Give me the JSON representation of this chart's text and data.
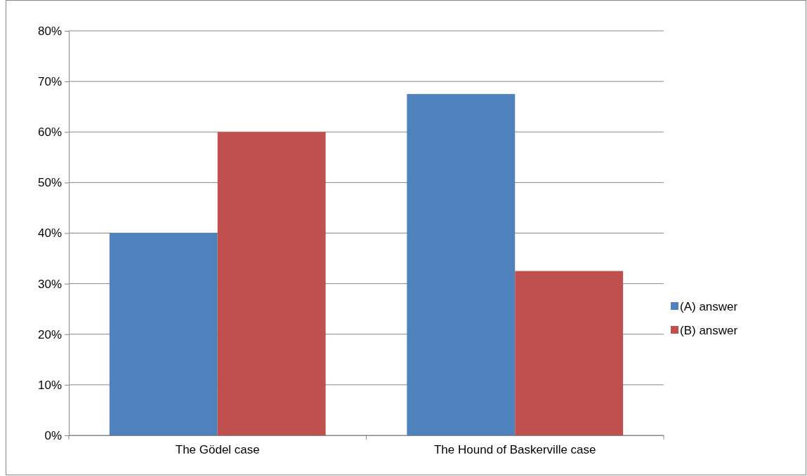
{
  "chart_data": {
    "type": "bar",
    "categories": [
      "The Gödel case",
      "The Hound of Baskerville case"
    ],
    "series": [
      {
        "name": "(A) answer",
        "color": "#4f81bd",
        "values": [
          40,
          67.5
        ]
      },
      {
        "name": "(B) answer",
        "color": "#c0504d",
        "values": [
          60,
          32.5
        ]
      }
    ],
    "ylim": [
      0,
      80
    ],
    "yticks": [
      {
        "value": 0,
        "label": "0%"
      },
      {
        "value": 10,
        "label": "10%"
      },
      {
        "value": 20,
        "label": "20%"
      },
      {
        "value": 30,
        "label": "30%"
      },
      {
        "value": 40,
        "label": "40%"
      },
      {
        "value": 50,
        "label": "50%"
      },
      {
        "value": 60,
        "label": "60%"
      },
      {
        "value": 70,
        "label": "70%"
      },
      {
        "value": 80,
        "label": "80%"
      }
    ],
    "grid": "y",
    "legend": "right"
  }
}
